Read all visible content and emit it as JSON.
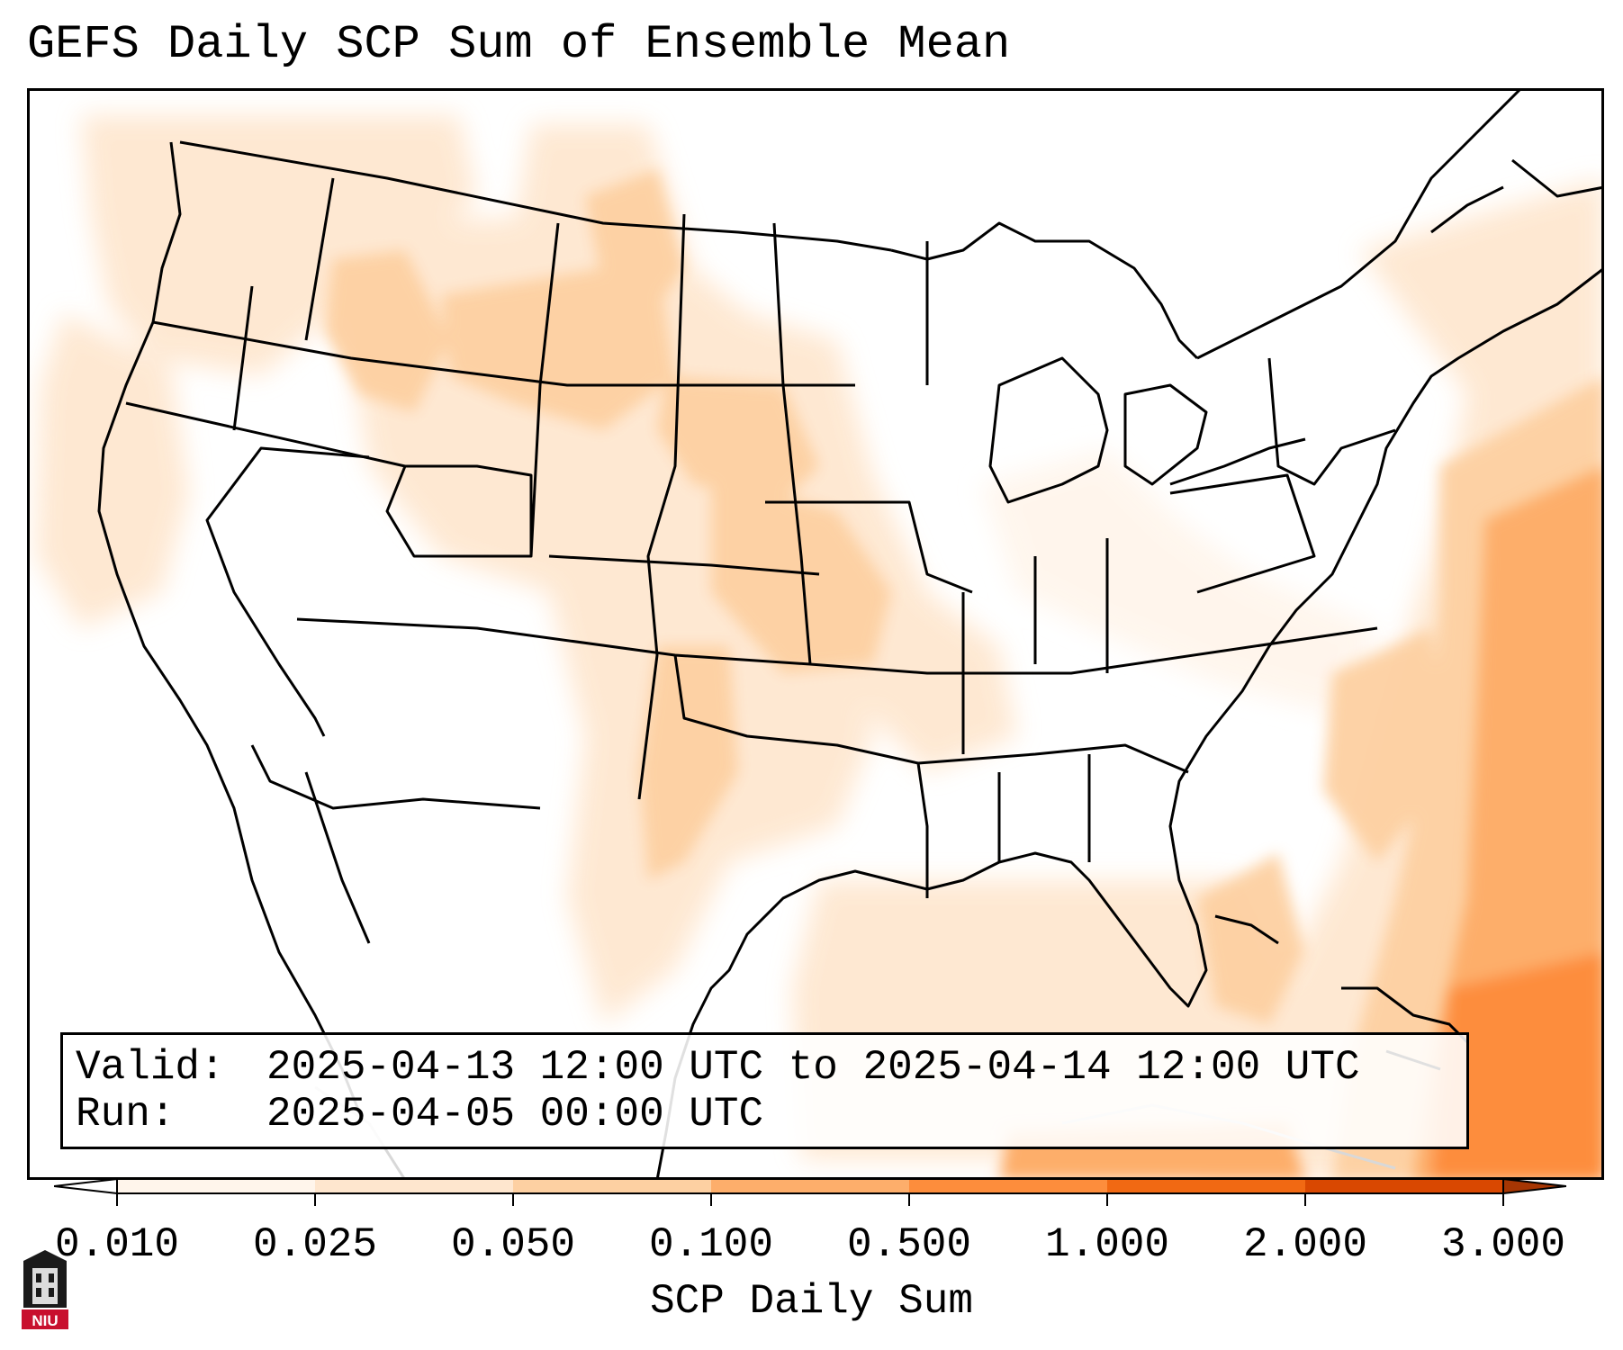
{
  "title": "GEFS Daily SCP Sum of Ensemble Mean",
  "info": {
    "valid_label": "Valid:",
    "valid_value": "2025-04-13 12:00 UTC to 2025-04-14 12:00 UTC",
    "run_label": "Run:",
    "run_value": "2025-04-05 00:00 UTC"
  },
  "colorbar": {
    "label": "SCP Daily Sum",
    "ticks": [
      "0.010",
      "0.025",
      "0.050",
      "0.100",
      "0.500",
      "1.000",
      "2.000",
      "3.000"
    ],
    "colors": [
      "#fff5eb",
      "#fee6ce",
      "#fdd0a2",
      "#fdae6b",
      "#fd8d3c",
      "#f16913",
      "#d94801",
      "#a63603"
    ],
    "under_color": "#ffffff",
    "over_color": "#a63603"
  },
  "logo": {
    "text": "NIU",
    "icon": "university-tower-icon"
  }
}
